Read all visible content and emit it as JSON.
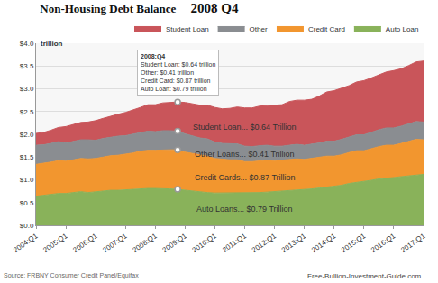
{
  "chart_data": {
    "type": "area",
    "title": "Non-Housing Debt Balance",
    "subtitle": "2008 Q4",
    "ylabel": "trillion",
    "stacked": true,
    "grid": true,
    "legend": "top right",
    "categories": [
      "2004:Q1",
      null,
      null,
      null,
      "2005:Q1",
      null,
      null,
      null,
      "2006:Q1",
      null,
      null,
      null,
      "2007:Q1",
      null,
      null,
      null,
      "2008:Q1",
      null,
      null,
      null,
      "2009:Q1",
      null,
      null,
      null,
      "2010:Q1",
      null,
      null,
      null,
      "2011:Q1",
      null,
      null,
      null,
      "2012:Q1",
      null,
      null,
      null,
      "2013:Q1",
      null,
      null,
      null,
      "2014:Q1",
      null,
      null,
      null,
      "2015:Q1",
      null,
      null,
      null,
      "2016:Q1",
      null,
      null,
      null,
      "2017:Q1"
    ],
    "series": [
      {
        "name": "Auto Loan",
        "color": "#89b25a",
        "label": "Auto Loans... $0.79 Trillion",
        "values": [
          0.64,
          0.66,
          0.68,
          0.7,
          0.7,
          0.72,
          0.74,
          0.72,
          0.74,
          0.76,
          0.77,
          0.77,
          0.78,
          0.79,
          0.81,
          0.81,
          0.81,
          0.81,
          0.8,
          0.79,
          0.77,
          0.75,
          0.74,
          0.72,
          0.71,
          0.71,
          0.71,
          0.71,
          0.71,
          0.71,
          0.72,
          0.73,
          0.74,
          0.75,
          0.77,
          0.78,
          0.79,
          0.8,
          0.82,
          0.84,
          0.86,
          0.88,
          0.92,
          0.94,
          0.96,
          0.99,
          1.02,
          1.03,
          1.05,
          1.07,
          1.09,
          1.11,
          1.12
        ]
      },
      {
        "name": "Credit Card",
        "color": "#f2962f",
        "label": "Credit Cards... $0.87 Trillion",
        "values": [
          0.7,
          0.7,
          0.71,
          0.72,
          0.71,
          0.72,
          0.73,
          0.74,
          0.73,
          0.74,
          0.76,
          0.77,
          0.78,
          0.8,
          0.82,
          0.84,
          0.84,
          0.85,
          0.86,
          0.87,
          0.84,
          0.83,
          0.81,
          0.8,
          0.76,
          0.74,
          0.73,
          0.73,
          0.69,
          0.69,
          0.7,
          0.7,
          0.68,
          0.68,
          0.67,
          0.68,
          0.66,
          0.67,
          0.67,
          0.68,
          0.66,
          0.67,
          0.68,
          0.7,
          0.68,
          0.7,
          0.71,
          0.73,
          0.71,
          0.73,
          0.75,
          0.78,
          0.76
        ]
      },
      {
        "name": "Other",
        "color": "#8a8d91",
        "label": "Other Loans... $0.41 Trillion",
        "values": [
          0.42,
          0.41,
          0.41,
          0.42,
          0.4,
          0.4,
          0.41,
          0.42,
          0.4,
          0.41,
          0.41,
          0.42,
          0.41,
          0.41,
          0.41,
          0.42,
          0.41,
          0.42,
          0.42,
          0.41,
          0.4,
          0.39,
          0.37,
          0.38,
          0.36,
          0.35,
          0.35,
          0.35,
          0.34,
          0.33,
          0.33,
          0.33,
          0.32,
          0.31,
          0.32,
          0.32,
          0.31,
          0.31,
          0.32,
          0.33,
          0.33,
          0.34,
          0.34,
          0.35,
          0.35,
          0.36,
          0.37,
          0.38,
          0.38,
          0.38,
          0.39,
          0.39,
          0.39
        ]
      },
      {
        "name": "Student Loan",
        "color": "#c9555a",
        "label": "Student Loan... $0.64 Trillion",
        "values": [
          0.26,
          0.27,
          0.29,
          0.31,
          0.36,
          0.37,
          0.38,
          0.39,
          0.43,
          0.44,
          0.46,
          0.48,
          0.51,
          0.53,
          0.55,
          0.58,
          0.59,
          0.61,
          0.62,
          0.64,
          0.69,
          0.7,
          0.72,
          0.74,
          0.76,
          0.76,
          0.78,
          0.81,
          0.84,
          0.85,
          0.87,
          0.87,
          0.9,
          0.91,
          0.96,
          0.97,
          0.99,
          0.99,
          1.03,
          1.08,
          1.11,
          1.12,
          1.13,
          1.16,
          1.19,
          1.19,
          1.2,
          1.23,
          1.26,
          1.26,
          1.28,
          1.31,
          1.34
        ]
      }
    ],
    "ylim": [
      0,
      4
    ],
    "yticks": [
      {
        "value": 0,
        "label": "$0.0"
      },
      {
        "value": 0.5,
        "label": "$0.5"
      },
      {
        "value": 1,
        "label": "$1.0"
      },
      {
        "value": 1.5,
        "label": "$1.5"
      },
      {
        "value": 2,
        "label": "$2.0"
      },
      {
        "value": 2.5,
        "label": "$2.5"
      },
      {
        "value": 3,
        "label": "$3.0"
      },
      {
        "value": 3.5,
        "label": "$3.5"
      },
      {
        "value": 4,
        "label": "$4.0"
      }
    ],
    "tooltip": {
      "title": "2008:Q4",
      "lines": [
        "Student Loan: $0.64 trillion",
        "Other: $0.41 trillion",
        "Credit Card: $0.87 trillion",
        "Auto Loan: $0.79 trillion"
      ]
    },
    "source": "Source: FRBNY Consumer Credit Panel/Equifax",
    "credit": "Free-Bullion-Investment-Guide.com"
  }
}
